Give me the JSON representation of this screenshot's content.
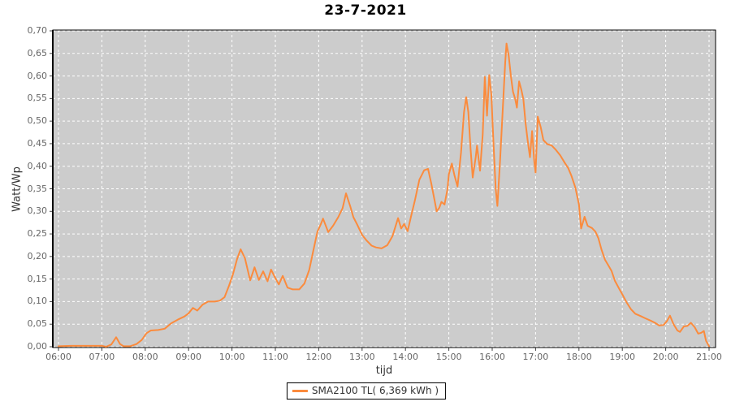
{
  "page": {
    "background": "#ffffff"
  },
  "colors": {
    "line": "#fb8b3d",
    "plot_background": "#cccccc",
    "gridline": "#ffffff",
    "plot_border": "#000000",
    "tick_mark": "#444444",
    "tick_label": "#666666",
    "axis_label": "#333333",
    "title": "#000000",
    "legend_background": "#ffffff",
    "legend_border": "#000000"
  },
  "chart_data": {
    "type": "line",
    "title": "23-7-2021",
    "xlabel": "tijd",
    "ylabel": "Watt/Wp",
    "xlim_hours": [
      6,
      21
    ],
    "ylim": [
      0.0,
      0.7
    ],
    "grid": "white dashed gridlines on gray plot background",
    "x_ticks": [
      "06:00",
      "07:00",
      "08:00",
      "09:00",
      "10:00",
      "11:00",
      "12:00",
      "13:00",
      "14:00",
      "15:00",
      "16:00",
      "17:00",
      "18:00",
      "19:00",
      "20:00",
      "21:00"
    ],
    "x_tick_hours": [
      6,
      7,
      8,
      9,
      10,
      11,
      12,
      13,
      14,
      15,
      16,
      17,
      18,
      19,
      20,
      21
    ],
    "y_ticks": [
      "0,00",
      "0,05",
      "0,10",
      "0,15",
      "0,20",
      "0,25",
      "0,30",
      "0,35",
      "0,40",
      "0,45",
      "0,50",
      "0,55",
      "0,60",
      "0,65",
      "0,70"
    ],
    "y_tick_values": [
      0.0,
      0.05,
      0.1,
      0.15,
      0.2,
      0.25,
      0.3,
      0.35,
      0.4,
      0.45,
      0.5,
      0.55,
      0.6,
      0.65,
      0.7
    ],
    "legend": {
      "position": "bottom-center",
      "entries": [
        {
          "label": "SMA2100 TL( 6,369 kWh )",
          "color": "#fb8b3d"
        }
      ]
    },
    "series": [
      {
        "name": "SMA2100 TL( 6,369 kWh )",
        "color": "#fb8b3d",
        "points": [
          [
            6.0,
            0.001
          ],
          [
            6.3,
            0.002
          ],
          [
            6.7,
            0.002
          ],
          [
            7.0,
            0.002
          ],
          [
            7.1,
            0.0
          ],
          [
            7.22,
            0.005
          ],
          [
            7.33,
            0.021
          ],
          [
            7.42,
            0.006
          ],
          [
            7.5,
            0.001
          ],
          [
            7.65,
            0.001
          ],
          [
            7.8,
            0.006
          ],
          [
            7.92,
            0.015
          ],
          [
            8.03,
            0.03
          ],
          [
            8.13,
            0.036
          ],
          [
            8.3,
            0.037
          ],
          [
            8.45,
            0.04
          ],
          [
            8.6,
            0.052
          ],
          [
            8.75,
            0.06
          ],
          [
            8.9,
            0.067
          ],
          [
            9.0,
            0.074
          ],
          [
            9.1,
            0.086
          ],
          [
            9.2,
            0.08
          ],
          [
            9.32,
            0.093
          ],
          [
            9.45,
            0.1
          ],
          [
            9.6,
            0.1
          ],
          [
            9.72,
            0.102
          ],
          [
            9.83,
            0.11
          ],
          [
            9.93,
            0.135
          ],
          [
            10.02,
            0.16
          ],
          [
            10.12,
            0.195
          ],
          [
            10.2,
            0.216
          ],
          [
            10.3,
            0.196
          ],
          [
            10.42,
            0.147
          ],
          [
            10.52,
            0.176
          ],
          [
            10.62,
            0.148
          ],
          [
            10.72,
            0.167
          ],
          [
            10.82,
            0.145
          ],
          [
            10.9,
            0.171
          ],
          [
            11.0,
            0.152
          ],
          [
            11.08,
            0.138
          ],
          [
            11.17,
            0.157
          ],
          [
            11.28,
            0.131
          ],
          [
            11.4,
            0.127
          ],
          [
            11.55,
            0.127
          ],
          [
            11.67,
            0.14
          ],
          [
            11.78,
            0.17
          ],
          [
            11.88,
            0.215
          ],
          [
            11.97,
            0.255
          ],
          [
            12.05,
            0.272
          ],
          [
            12.1,
            0.284
          ],
          [
            12.22,
            0.254
          ],
          [
            12.33,
            0.268
          ],
          [
            12.45,
            0.287
          ],
          [
            12.55,
            0.307
          ],
          [
            12.63,
            0.34
          ],
          [
            12.73,
            0.31
          ],
          [
            12.8,
            0.287
          ],
          [
            12.88,
            0.272
          ],
          [
            13.0,
            0.248
          ],
          [
            13.1,
            0.236
          ],
          [
            13.22,
            0.224
          ],
          [
            13.32,
            0.22
          ],
          [
            13.45,
            0.218
          ],
          [
            13.58,
            0.225
          ],
          [
            13.7,
            0.245
          ],
          [
            13.83,
            0.285
          ],
          [
            13.9,
            0.262
          ],
          [
            13.97,
            0.272
          ],
          [
            14.05,
            0.256
          ],
          [
            14.13,
            0.289
          ],
          [
            14.22,
            0.325
          ],
          [
            14.32,
            0.37
          ],
          [
            14.43,
            0.391
          ],
          [
            14.52,
            0.394
          ],
          [
            14.6,
            0.36
          ],
          [
            14.67,
            0.325
          ],
          [
            14.72,
            0.3
          ],
          [
            14.78,
            0.308
          ],
          [
            14.83,
            0.321
          ],
          [
            14.9,
            0.315
          ],
          [
            14.97,
            0.35
          ],
          [
            15.0,
            0.382
          ],
          [
            15.07,
            0.406
          ],
          [
            15.13,
            0.38
          ],
          [
            15.2,
            0.355
          ],
          [
            15.28,
            0.43
          ],
          [
            15.35,
            0.52
          ],
          [
            15.4,
            0.553
          ],
          [
            15.45,
            0.52
          ],
          [
            15.5,
            0.44
          ],
          [
            15.55,
            0.375
          ],
          [
            15.62,
            0.42
          ],
          [
            15.65,
            0.446
          ],
          [
            15.72,
            0.39
          ],
          [
            15.78,
            0.47
          ],
          [
            15.83,
            0.598
          ],
          [
            15.88,
            0.512
          ],
          [
            15.93,
            0.602
          ],
          [
            15.98,
            0.56
          ],
          [
            16.03,
            0.45
          ],
          [
            16.08,
            0.35
          ],
          [
            16.12,
            0.312
          ],
          [
            16.18,
            0.41
          ],
          [
            16.25,
            0.54
          ],
          [
            16.3,
            0.63
          ],
          [
            16.33,
            0.672
          ],
          [
            16.38,
            0.645
          ],
          [
            16.43,
            0.6
          ],
          [
            16.48,
            0.565
          ],
          [
            16.53,
            0.549
          ],
          [
            16.57,
            0.53
          ],
          [
            16.62,
            0.588
          ],
          [
            16.67,
            0.57
          ],
          [
            16.72,
            0.548
          ],
          [
            16.77,
            0.495
          ],
          [
            16.82,
            0.455
          ],
          [
            16.87,
            0.42
          ],
          [
            16.92,
            0.478
          ],
          [
            16.97,
            0.41
          ],
          [
            17.0,
            0.386
          ],
          [
            17.05,
            0.51
          ],
          [
            17.12,
            0.486
          ],
          [
            17.18,
            0.458
          ],
          [
            17.27,
            0.449
          ],
          [
            17.37,
            0.446
          ],
          [
            17.47,
            0.436
          ],
          [
            17.57,
            0.424
          ],
          [
            17.67,
            0.408
          ],
          [
            17.75,
            0.396
          ],
          [
            17.83,
            0.378
          ],
          [
            17.92,
            0.352
          ],
          [
            18.0,
            0.315
          ],
          [
            18.05,
            0.262
          ],
          [
            18.13,
            0.288
          ],
          [
            18.2,
            0.268
          ],
          [
            18.3,
            0.263
          ],
          [
            18.38,
            0.255
          ],
          [
            18.45,
            0.24
          ],
          [
            18.52,
            0.215
          ],
          [
            18.6,
            0.193
          ],
          [
            18.68,
            0.18
          ],
          [
            18.75,
            0.168
          ],
          [
            18.83,
            0.146
          ],
          [
            18.92,
            0.13
          ],
          [
            19.0,
            0.116
          ],
          [
            19.1,
            0.098
          ],
          [
            19.2,
            0.083
          ],
          [
            19.3,
            0.073
          ],
          [
            19.42,
            0.068
          ],
          [
            19.53,
            0.063
          ],
          [
            19.65,
            0.058
          ],
          [
            19.75,
            0.053
          ],
          [
            19.85,
            0.047
          ],
          [
            19.95,
            0.048
          ],
          [
            20.03,
            0.057
          ],
          [
            20.1,
            0.069
          ],
          [
            20.18,
            0.05
          ],
          [
            20.27,
            0.036
          ],
          [
            20.33,
            0.033
          ],
          [
            20.42,
            0.045
          ],
          [
            20.5,
            0.046
          ],
          [
            20.58,
            0.053
          ],
          [
            20.67,
            0.043
          ],
          [
            20.75,
            0.029
          ],
          [
            20.82,
            0.031
          ],
          [
            20.88,
            0.035
          ],
          [
            20.93,
            0.013
          ],
          [
            21.0,
            0.001
          ]
        ]
      }
    ]
  }
}
